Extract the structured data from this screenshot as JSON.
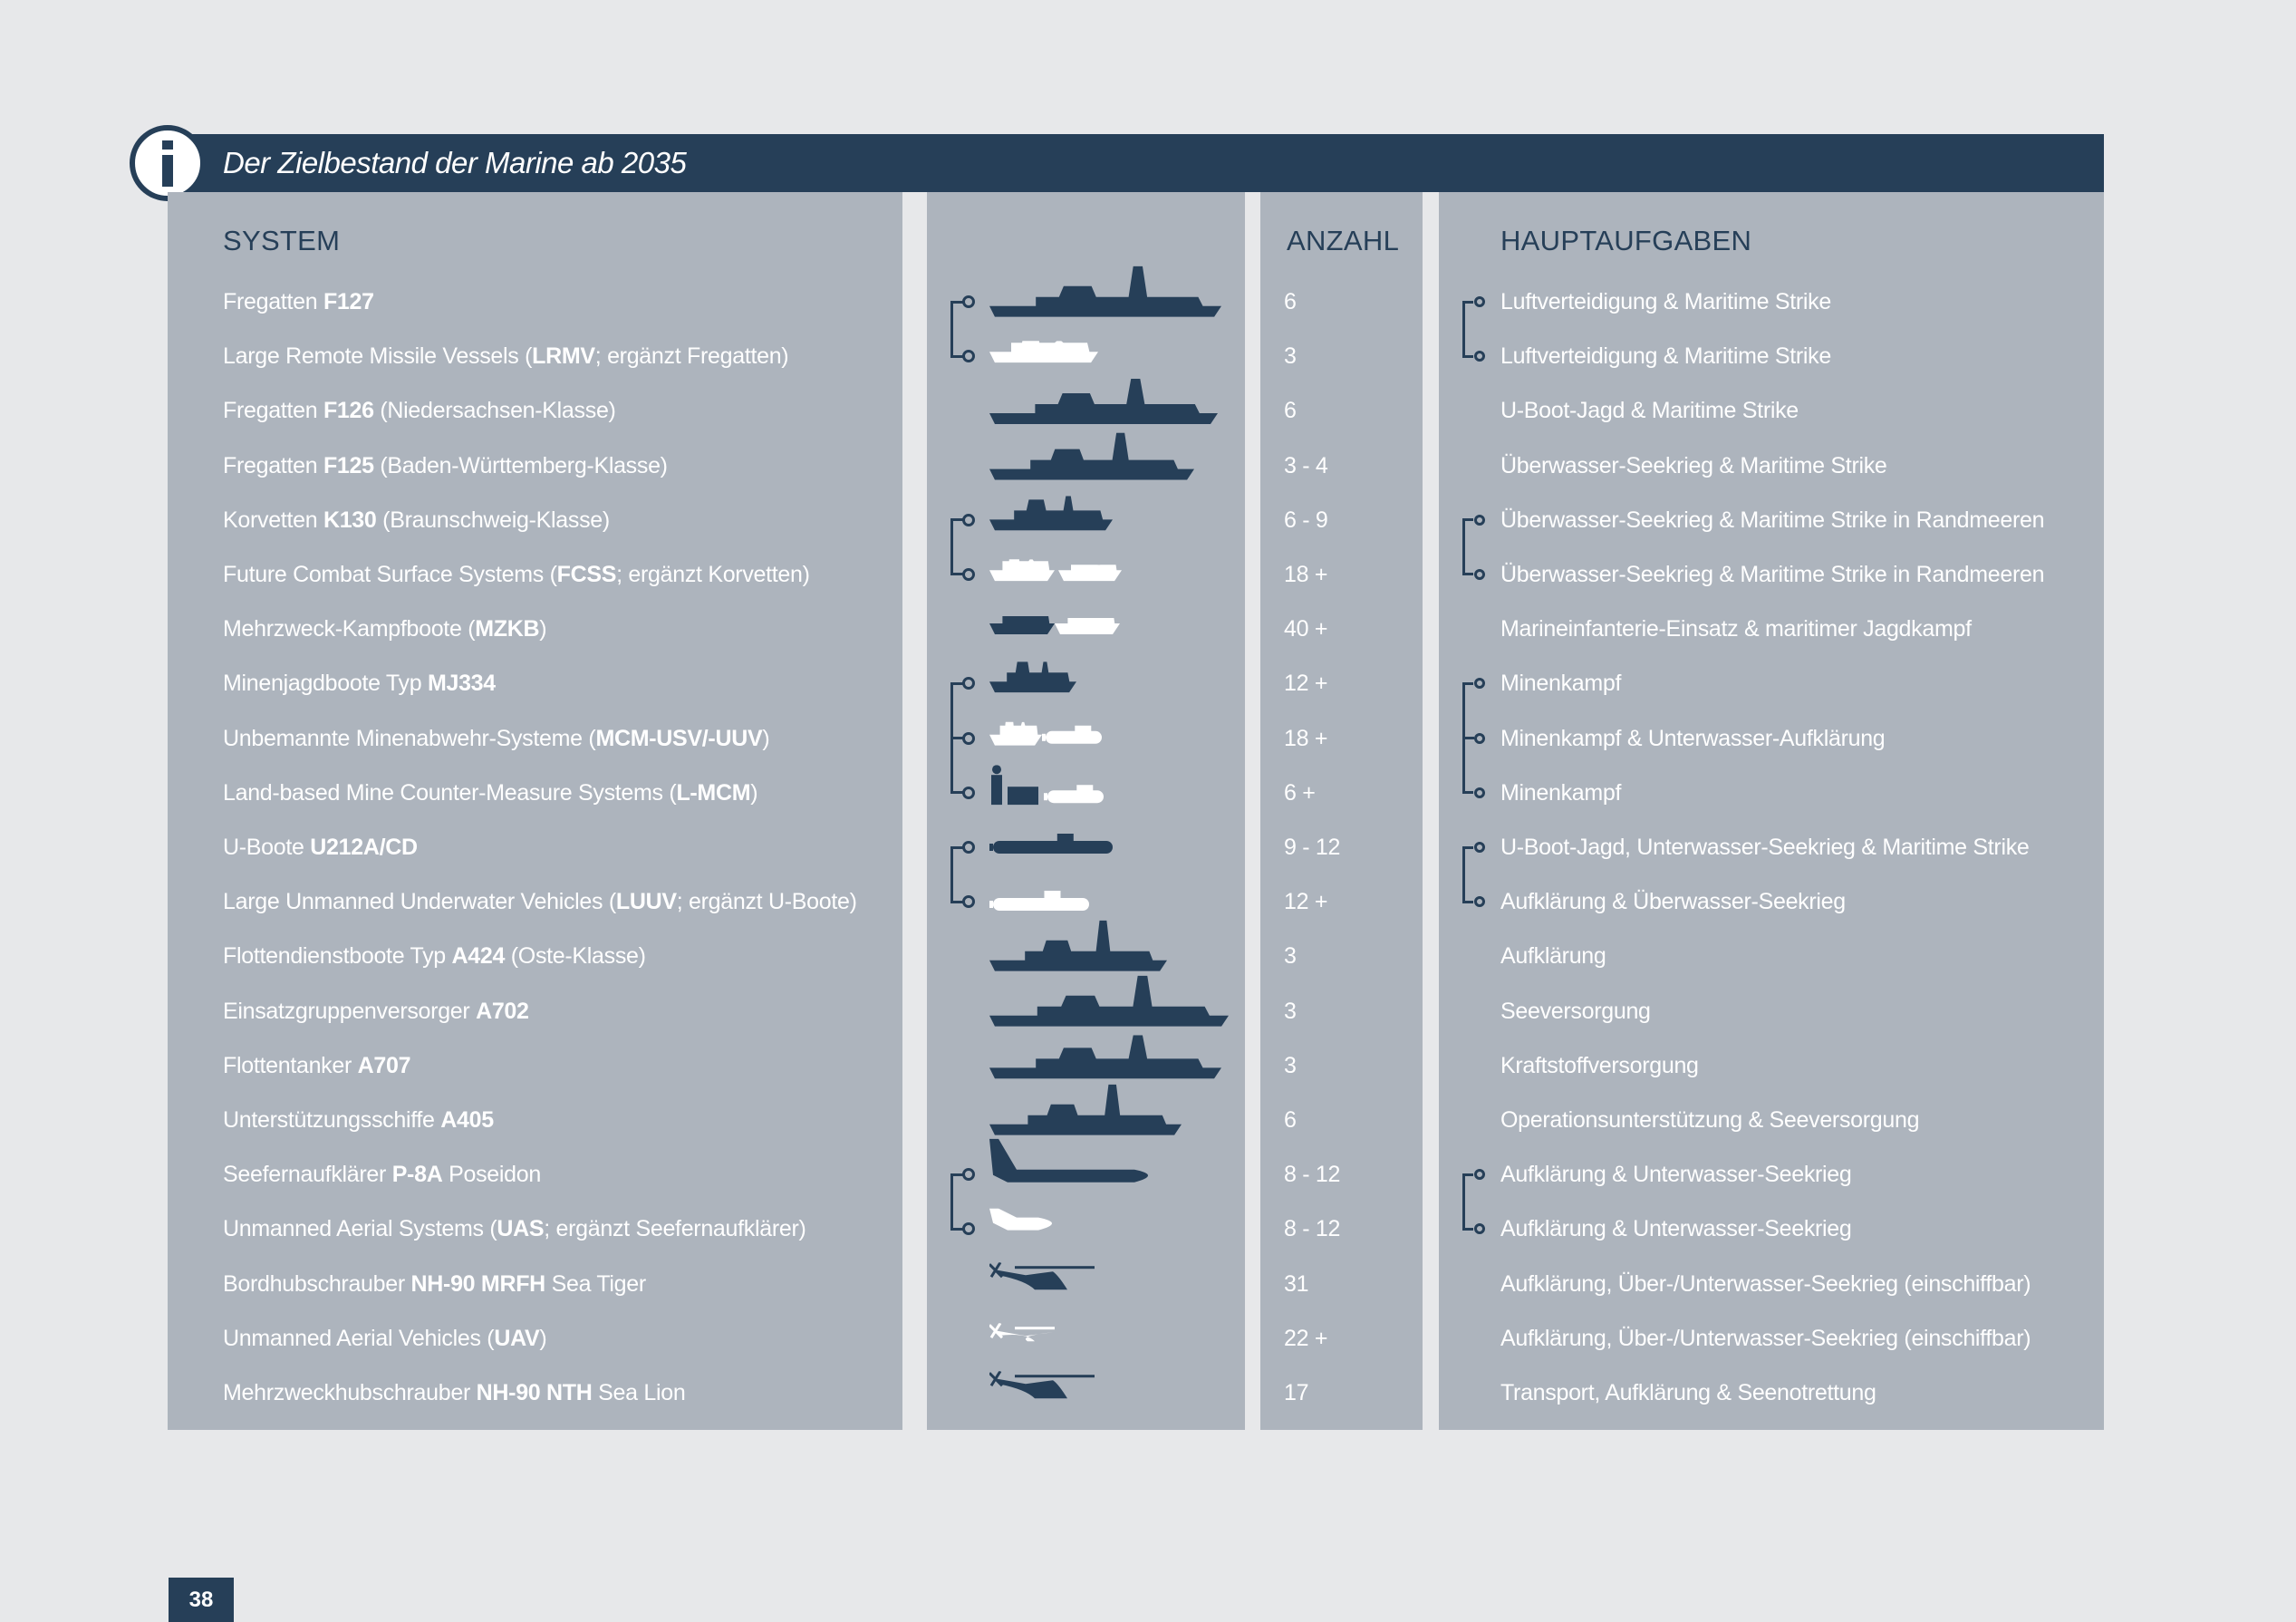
{
  "header": {
    "title": "Der Zielbestand der Marine ab 2035",
    "info_icon": "info-icon"
  },
  "columns": {
    "system": "SYSTEM",
    "anzahl": "ANZAHL",
    "hauptaufgaben": "HAUPTAUFGABEN"
  },
  "colors": {
    "header_bg": "#263f58",
    "panel_bg": "#adb4bd",
    "page_bg": "#e7e8ea",
    "text_light": "#ffffff",
    "text_dark": "#263f58"
  },
  "rows": [
    {
      "pre": "Fregatten ",
      "bold": "F127",
      "post": "",
      "count": "6",
      "task": "Luftverteidigung & Maritime Strike",
      "icon": "frigate-f127-icon",
      "icon_color": "dark"
    },
    {
      "pre": "Large Remote Missile Vessels (",
      "bold": "LRMV",
      "post": "; ergänzt Fregatten)",
      "count": "3",
      "task": "Luftverteidigung & Maritime Strike",
      "icon": "lrmv-vessel-icon",
      "icon_color": "white"
    },
    {
      "pre": "Fregatten ",
      "bold": "F126",
      "post": " (Niedersachsen-Klasse)",
      "count": "6",
      "task": "U-Boot-Jagd & Maritime Strike",
      "icon": "frigate-f126-icon",
      "icon_color": "dark"
    },
    {
      "pre": "Fregatten ",
      "bold": "F125",
      "post": " (Baden-Württemberg-Klasse)",
      "count": "3 - 4",
      "task": "Überwasser-Seekrieg & Maritime Strike",
      "icon": "frigate-f125-icon",
      "icon_color": "dark"
    },
    {
      "pre": "Korvetten ",
      "bold": "K130",
      "post": " (Braunschweig-Klasse)",
      "count": "6 - 9",
      "task": "Überwasser-Seekrieg & Maritime Strike in Randmeeren",
      "icon": "corvette-k130-icon",
      "icon_color": "dark"
    },
    {
      "pre": "Future Combat Surface Systems (",
      "bold": "FCSS",
      "post": "; ergänzt Korvetten)",
      "count": "18 +",
      "task": "Überwasser-Seekrieg & Maritime Strike in Randmeeren",
      "icon": "fcss-boats-icon",
      "icon_color": "white"
    },
    {
      "pre": "Mehrzweck-Kampfboote (",
      "bold": "MZKB",
      "post": ")",
      "count": "40 +",
      "task": "Marineinfanterie-Einsatz & maritimer Jagdkampf",
      "icon": "combat-boats-icon",
      "icon_color": "mixed"
    },
    {
      "pre": "Minenjagdboote Typ ",
      "bold": "MJ334",
      "post": "",
      "count": "12 +",
      "task": "Minenkampf",
      "icon": "minehunter-icon",
      "icon_color": "dark"
    },
    {
      "pre": "Unbemannte Minenabwehr-Systeme (",
      "bold": "MCM-USV/-UUV",
      "post": ")",
      "count": "18 +",
      "task": "Minenkampf & Unterwasser-Aufklärung",
      "icon": "mcm-usv-uuv-icon",
      "icon_color": "white"
    },
    {
      "pre": "Land-based Mine Counter-Measure Systems (",
      "bold": "L-MCM",
      "post": ")",
      "count": "6 +",
      "task": "Minenkampf",
      "icon": "l-mcm-icon",
      "icon_color": "mixed"
    },
    {
      "pre": "U-Boote ",
      "bold": "U212A/CD",
      "post": "",
      "count": "9 - 12",
      "task": "U-Boot-Jagd, Unterwasser-Seekrieg & Maritime Strike",
      "icon": "submarine-icon",
      "icon_color": "dark"
    },
    {
      "pre": "Large Unmanned Underwater Vehicles (",
      "bold": "LUUV",
      "post": "; ergänzt U-Boote)",
      "count": "12 +",
      "task": "Aufklärung & Überwasser-Seekrieg",
      "icon": "luuv-icon",
      "icon_color": "white"
    },
    {
      "pre": "Flottendienstboote Typ ",
      "bold": "A424",
      "post": " (Oste-Klasse)",
      "count": "3",
      "task": "Aufklärung",
      "icon": "fleet-service-boat-icon",
      "icon_color": "dark"
    },
    {
      "pre": "Einsatzgruppenversorger ",
      "bold": "A702",
      "post": "",
      "count": "3",
      "task": "Seeversorgung",
      "icon": "supply-ship-icon",
      "icon_color": "dark"
    },
    {
      "pre": "Flottentanker ",
      "bold": "A707",
      "post": "",
      "count": "3",
      "task": "Kraftstoffversorgung",
      "icon": "tanker-icon",
      "icon_color": "dark"
    },
    {
      "pre": "Unterstützungsschiffe ",
      "bold": "A405",
      "post": "",
      "count": "6",
      "task": "Operationsunterstützung & Seeversorgung",
      "icon": "support-ship-icon",
      "icon_color": "dark"
    },
    {
      "pre": "Seefernaufklärer ",
      "bold": "P-8A",
      "post": " Poseidon",
      "count": "8 - 12",
      "task": "Aufklärung & Unterwasser-Seekrieg",
      "icon": "p8a-aircraft-icon",
      "icon_color": "dark"
    },
    {
      "pre": "Unmanned Aerial Systems (",
      "bold": "UAS",
      "post": "; ergänzt Seefernaufklärer)",
      "count": "8 - 12",
      "task": "Aufklärung & Unterwasser-Seekrieg",
      "icon": "uas-drone-icon",
      "icon_color": "white"
    },
    {
      "pre": "Bordhubschrauber ",
      "bold": "NH-90 MRFH",
      "post": " Sea Tiger",
      "count": "31",
      "task": "Aufklärung, Über-/Unterwasser-Seekrieg (einschiffbar)",
      "icon": "helicopter-sea-tiger-icon",
      "icon_color": "dark"
    },
    {
      "pre": "Unmanned Aerial Vehicles (",
      "bold": "UAV",
      "post": ")",
      "count": "22 +",
      "task": "Aufklärung, Über-/Unterwasser-Seekrieg (einschiffbar)",
      "icon": "uav-helicopter-icon",
      "icon_color": "white"
    },
    {
      "pre": "Mehrzweckhubschrauber ",
      "bold": "NH-90 NTH",
      "post": " Sea Lion",
      "count": "17",
      "task": "Transport, Aufklärung & Seenotrettung",
      "icon": "helicopter-sea-lion-icon",
      "icon_color": "dark"
    }
  ],
  "groups": [
    {
      "rows": [
        0,
        1
      ]
    },
    {
      "rows": [
        4,
        5
      ]
    },
    {
      "rows": [
        7,
        8,
        9
      ]
    },
    {
      "rows": [
        10,
        11
      ]
    },
    {
      "rows": [
        16,
        17
      ]
    }
  ],
  "footer": {
    "page_number": "38"
  }
}
